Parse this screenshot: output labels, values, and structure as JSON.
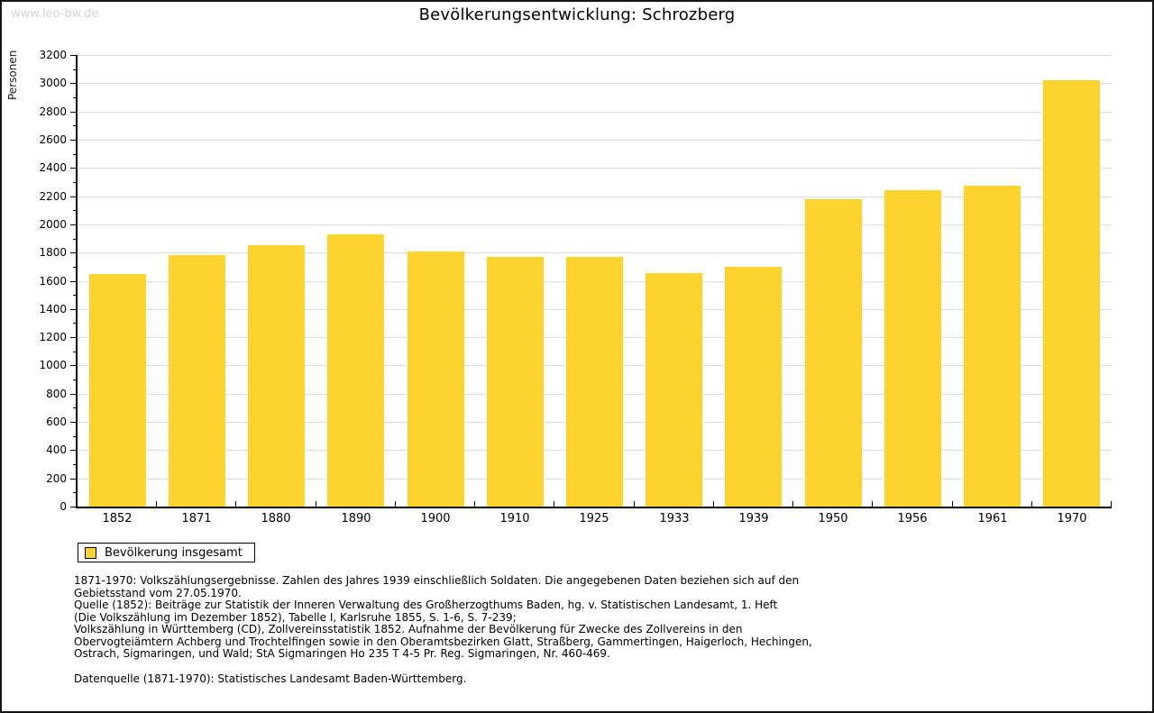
{
  "watermark": "www.leo-bw.de",
  "header": {
    "title": "Bevölkerungsentwicklung: Schrozberg"
  },
  "chart_data": {
    "type": "bar",
    "title": "Bevölkerungsentwicklung: Schrozberg",
    "xlabel": "",
    "ylabel": "Personen",
    "categories": [
      "1852",
      "1871",
      "1880",
      "1890",
      "1900",
      "1910",
      "1925",
      "1933",
      "1939",
      "1950",
      "1956",
      "1961",
      "1970"
    ],
    "values": [
      1645,
      1785,
      1855,
      1930,
      1810,
      1770,
      1770,
      1655,
      1700,
      2175,
      2245,
      2275,
      3020
    ],
    "series_name": "Bevölkerung insgesamt",
    "ylim": [
      0,
      3200
    ],
    "ytick_major": 200,
    "ytick_minor": 100,
    "grid": true,
    "legend_position": "bottom-left",
    "bar_color": "#FCD42D"
  },
  "legend": {
    "label": "Bevölkerung insgesamt"
  },
  "footnotes": {
    "lines": [
      "1871-1970: Volkszählungsergebnisse. Zahlen des Jahres 1939 einschließlich Soldaten. Die angegebenen Daten beziehen sich auf den",
      "Gebietsstand vom 27.05.1970.",
      "Quelle (1852): Beiträge zur Statistik der Inneren Verwaltung des Großherzogthums Baden, hg. v. Statistischen Landesamt, 1. Heft",
      "(Die Volkszählung im Dezember 1852), Tabelle I, Karlsruhe 1855, S. 1-6, S. 7-239;",
      "Volkszählung in Württemberg (CD), Zollvereinsstatistik 1852. Aufnahme der Bevölkerung für Zwecke des Zollvereins in den",
      "Obervogteiämtern Achberg und Trochtelfingen sowie in den Oberamtsbezirken Glatt, Straßberg, Gammertingen, Haigerloch, Hechingen,",
      "Ostrach, Sigmaringen, und Wald; StA Sigmaringen Ho 235 T 4-5 Pr. Reg. Sigmaringen, Nr. 460-469."
    ],
    "datasource": "Datenquelle (1871-1970): Statistisches Landesamt Baden-Württemberg."
  },
  "colors": {
    "bar": "#FCD42D",
    "grid": "#DCDCDC",
    "axis": "#000000",
    "watermark": "#D4D4D4"
  }
}
